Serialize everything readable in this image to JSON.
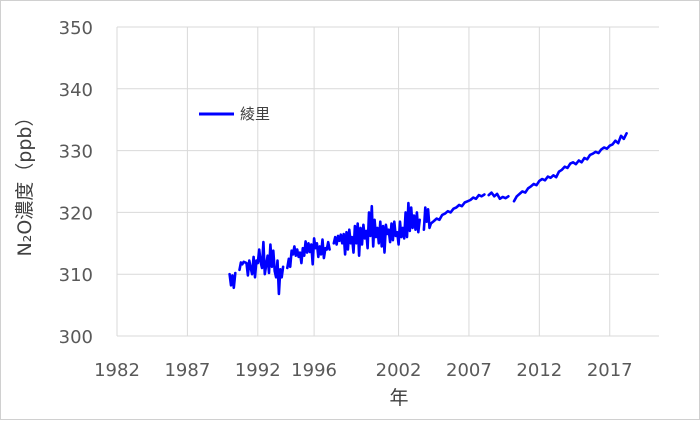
{
  "chart_data": {
    "type": "line",
    "title": "",
    "xlabel": "年",
    "ylabel": "N₂O濃度（ppb）",
    "xlim": [
      1982,
      2020.5
    ],
    "ylim": [
      300,
      350
    ],
    "x_ticks": [
      1982,
      1987,
      1992,
      1996,
      2002,
      2007,
      2012,
      2017
    ],
    "y_ticks": [
      300,
      310,
      320,
      330,
      340,
      350
    ],
    "grid": true,
    "legend_position": "top-left",
    "series": [
      {
        "name": "綾里",
        "color": "#0000ff",
        "segments": [
          [
            [
              1990.0,
              310.0
            ],
            [
              1990.1,
              308.2
            ],
            [
              1990.2,
              309.8
            ],
            [
              1990.3,
              307.8
            ],
            [
              1990.4,
              310.2
            ]
          ],
          [
            [
              1990.7,
              310.7
            ],
            [
              1990.8,
              311.9
            ],
            [
              1990.9,
              311.6
            ],
            [
              1991.0,
              312.0
            ],
            [
              1991.2,
              311.8
            ],
            [
              1991.3,
              309.8
            ],
            [
              1991.4,
              312.2
            ],
            [
              1991.5,
              311.0
            ],
            [
              1991.6,
              310.0
            ],
            [
              1991.7,
              312.8
            ],
            [
              1991.8,
              309.5
            ],
            [
              1991.9,
              312.2
            ],
            [
              1992.0,
              311.8
            ],
            [
              1992.1,
              314.0
            ],
            [
              1992.2,
              312.0
            ],
            [
              1992.3,
              311.0
            ],
            [
              1992.4,
              315.2
            ],
            [
              1992.5,
              310.0
            ],
            [
              1992.6,
              311.5
            ],
            [
              1992.7,
              313.0
            ],
            [
              1992.8,
              310.2
            ],
            [
              1992.9,
              314.8
            ],
            [
              1993.0,
              311.2
            ],
            [
              1993.1,
              313.8
            ],
            [
              1993.2,
              310.5
            ],
            [
              1993.3,
              309.5
            ],
            [
              1993.4,
              312.2
            ],
            [
              1993.5,
              306.8
            ],
            [
              1993.6,
              310.8
            ],
            [
              1993.7,
              309.5
            ],
            [
              1993.8,
              311.2
            ]
          ],
          [
            [
              1994.1,
              311.0
            ],
            [
              1994.2,
              312.5
            ],
            [
              1994.3,
              311.2
            ],
            [
              1994.4,
              313.8
            ],
            [
              1994.5,
              313.2
            ],
            [
              1994.6,
              314.5
            ],
            [
              1994.7,
              313.0
            ],
            [
              1994.8,
              314.0
            ],
            [
              1994.9,
              312.8
            ],
            [
              1995.0,
              313.5
            ],
            [
              1995.1,
              311.8
            ],
            [
              1995.2,
              314.2
            ],
            [
              1995.3,
              313.0
            ],
            [
              1995.4,
              315.3
            ],
            [
              1995.5,
              313.5
            ],
            [
              1995.6,
              315.0
            ],
            [
              1995.7,
              313.6
            ],
            [
              1995.8,
              314.8
            ],
            [
              1995.9,
              311.6
            ],
            [
              1996.0,
              315.8
            ],
            [
              1996.1,
              314.2
            ],
            [
              1996.2,
              315.0
            ],
            [
              1996.3,
              312.8
            ],
            [
              1996.4,
              314.5
            ],
            [
              1996.5,
              313.2
            ],
            [
              1996.6,
              315.6
            ],
            [
              1996.7,
              312.6
            ],
            [
              1996.8,
              314.2
            ],
            [
              1996.9,
              314.0
            ],
            [
              1997.0,
              315.2
            ],
            [
              1997.1,
              314.0
            ]
          ],
          [
            [
              1997.4,
              315.0
            ],
            [
              1997.5,
              316.0
            ],
            [
              1997.6,
              314.8
            ],
            [
              1997.7,
              316.2
            ],
            [
              1997.8,
              315.4
            ],
            [
              1997.9,
              316.4
            ],
            [
              1998.0,
              315.0
            ],
            [
              1998.1,
              316.5
            ],
            [
              1998.2,
              313.2
            ],
            [
              1998.3,
              316.8
            ],
            [
              1998.4,
              314.0
            ],
            [
              1998.5,
              317.2
            ],
            [
              1998.6,
              315.0
            ],
            [
              1998.7,
              316.0
            ],
            [
              1998.8,
              313.5
            ],
            [
              1998.9,
              317.8
            ],
            [
              1999.0,
              315.0
            ],
            [
              1999.1,
              318.2
            ],
            [
              1999.2,
              313.0
            ],
            [
              1999.3,
              317.5
            ],
            [
              1999.4,
              314.8
            ],
            [
              1999.5,
              318.0
            ],
            [
              1999.6,
              315.8
            ],
            [
              1999.7,
              317.0
            ],
            [
              1999.8,
              314.2
            ],
            [
              1999.9,
              320.0
            ],
            [
              2000.0,
              316.2
            ],
            [
              2000.1,
              321.0
            ],
            [
              2000.2,
              314.5
            ],
            [
              2000.3,
              318.8
            ],
            [
              2000.4,
              316.0
            ],
            [
              2000.5,
              317.5
            ],
            [
              2000.6,
              315.0
            ],
            [
              2000.7,
              318.5
            ],
            [
              2000.8,
              314.5
            ],
            [
              2000.9,
              317.8
            ],
            [
              2001.0,
              313.5
            ],
            [
              2001.1,
              318.0
            ],
            [
              2001.2,
              316.5
            ],
            [
              2001.3,
              317.2
            ],
            [
              2001.4,
              315.2
            ],
            [
              2001.5,
              318.2
            ],
            [
              2001.6,
              315.5
            ],
            [
              2001.7,
              318.5
            ],
            [
              2001.8,
              316.2
            ],
            [
              2001.9,
              316.8
            ],
            [
              2002.0,
              314.8
            ],
            [
              2002.1,
              318.5
            ],
            [
              2002.2,
              316.0
            ],
            [
              2002.3,
              317.5
            ],
            [
              2002.4,
              315.8
            ],
            [
              2002.5,
              320.0
            ],
            [
              2002.6,
              316.0
            ],
            [
              2002.7,
              321.5
            ],
            [
              2002.8,
              317.0
            ],
            [
              2002.9,
              320.8
            ],
            [
              2003.0,
              317.5
            ],
            [
              2003.1,
              319.5
            ],
            [
              2003.2,
              317.2
            ],
            [
              2003.3,
              320.0
            ],
            [
              2003.4,
              316.8
            ],
            [
              2003.5,
              318.8
            ]
          ],
          [
            [
              2003.8,
              317.2
            ],
            [
              2003.9,
              320.8
            ],
            [
              2004.0,
              318.5
            ],
            [
              2004.1,
              320.5
            ],
            [
              2004.2,
              317.5
            ],
            [
              2004.3,
              318.2
            ],
            [
              2004.5,
              318.6
            ],
            [
              2004.7,
              319.0
            ],
            [
              2004.9,
              318.8
            ],
            [
              2005.1,
              319.6
            ],
            [
              2005.3,
              319.8
            ],
            [
              2005.5,
              320.2
            ],
            [
              2005.7,
              320.0
            ],
            [
              2005.9,
              320.6
            ],
            [
              2006.1,
              320.8
            ],
            [
              2006.3,
              321.2
            ],
            [
              2006.5,
              321.0
            ],
            [
              2006.7,
              321.6
            ],
            [
              2006.9,
              321.8
            ],
            [
              2007.1,
              322.0
            ],
            [
              2007.3,
              322.4
            ],
            [
              2007.5,
              322.2
            ],
            [
              2007.7,
              322.8
            ],
            [
              2007.9,
              322.6
            ],
            [
              2008.1,
              322.9
            ]
          ],
          [
            [
              2008.4,
              322.8
            ],
            [
              2008.6,
              323.2
            ],
            [
              2008.8,
              322.6
            ],
            [
              2009.0,
              323.0
            ],
            [
              2009.2,
              322.2
            ],
            [
              2009.4,
              322.5
            ],
            [
              2009.6,
              322.3
            ],
            [
              2009.8,
              322.6
            ]
          ],
          [
            [
              2010.2,
              321.8
            ],
            [
              2010.4,
              322.6
            ],
            [
              2010.6,
              323.0
            ],
            [
              2010.8,
              323.4
            ],
            [
              2011.0,
              323.2
            ],
            [
              2011.2,
              323.9
            ],
            [
              2011.4,
              324.2
            ],
            [
              2011.6,
              324.6
            ],
            [
              2011.8,
              324.4
            ],
            [
              2012.0,
              325.1
            ],
            [
              2012.2,
              325.4
            ],
            [
              2012.4,
              325.2
            ],
            [
              2012.6,
              325.8
            ],
            [
              2012.8,
              325.6
            ],
            [
              2013.0,
              326.0
            ],
            [
              2013.2,
              325.7
            ],
            [
              2013.4,
              326.6
            ],
            [
              2013.6,
              326.9
            ],
            [
              2013.8,
              327.4
            ],
            [
              2014.0,
              327.2
            ],
            [
              2014.2,
              327.9
            ],
            [
              2014.4,
              328.1
            ],
            [
              2014.6,
              327.8
            ],
            [
              2014.8,
              328.4
            ],
            [
              2015.0,
              328.1
            ],
            [
              2015.2,
              328.8
            ],
            [
              2015.4,
              328.6
            ],
            [
              2015.6,
              329.3
            ],
            [
              2015.8,
              329.5
            ],
            [
              2016.0,
              329.8
            ],
            [
              2016.2,
              329.6
            ],
            [
              2016.4,
              330.2
            ],
            [
              2016.6,
              330.5
            ],
            [
              2016.8,
              330.3
            ],
            [
              2017.0,
              330.8
            ],
            [
              2017.2,
              331.0
            ],
            [
              2017.4,
              331.6
            ],
            [
              2017.6,
              331.2
            ],
            [
              2017.8,
              332.4
            ],
            [
              2018.0,
              331.9
            ],
            [
              2018.2,
              332.8
            ]
          ]
        ]
      }
    ]
  }
}
